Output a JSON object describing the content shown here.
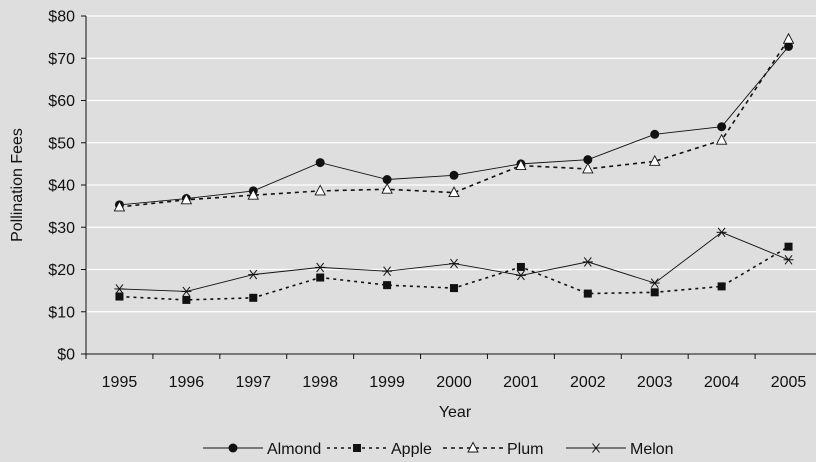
{
  "chart_data": {
    "type": "line",
    "title": "",
    "xlabel": "Year",
    "ylabel": "Pollination Fees",
    "categories": [
      "1995",
      "1996",
      "1997",
      "1998",
      "1999",
      "2000",
      "2001",
      "2002",
      "2003",
      "2004",
      "2005"
    ],
    "ylim": [
      0,
      80
    ],
    "yticks": [
      0,
      10,
      20,
      30,
      40,
      50,
      60,
      70,
      80
    ],
    "ytick_labels": [
      "$0",
      "$10",
      "$20",
      "$30",
      "$40",
      "$50",
      "$60",
      "$70",
      "$80"
    ],
    "grid": true,
    "legend_position": "bottom",
    "background": "#dedede",
    "series": [
      {
        "name": "Almond",
        "marker": "filled-circle",
        "line": "solid",
        "color": "#111111",
        "values": [
          35.3,
          36.8,
          38.6,
          45.3,
          41.3,
          42.3,
          45.0,
          46.0,
          52.0,
          53.8,
          72.8
        ]
      },
      {
        "name": "Apple",
        "marker": "filled-square",
        "line": "dotted",
        "color": "#111111",
        "values": [
          13.6,
          12.8,
          13.3,
          18.1,
          16.3,
          15.6,
          20.6,
          14.3,
          14.6,
          16.0,
          25.4
        ]
      },
      {
        "name": "Plum",
        "marker": "open-triangle",
        "line": "dashed",
        "color": "#111111",
        "values": [
          34.8,
          36.5,
          37.6,
          38.6,
          39.0,
          38.2,
          44.6,
          43.8,
          45.6,
          50.6,
          74.5
        ]
      },
      {
        "name": "Melon",
        "marker": "asterisk",
        "line": "solid",
        "color": "#111111",
        "values": [
          15.4,
          14.8,
          18.8,
          20.5,
          19.6,
          21.4,
          18.6,
          21.8,
          16.8,
          28.8,
          22.3
        ]
      }
    ]
  }
}
